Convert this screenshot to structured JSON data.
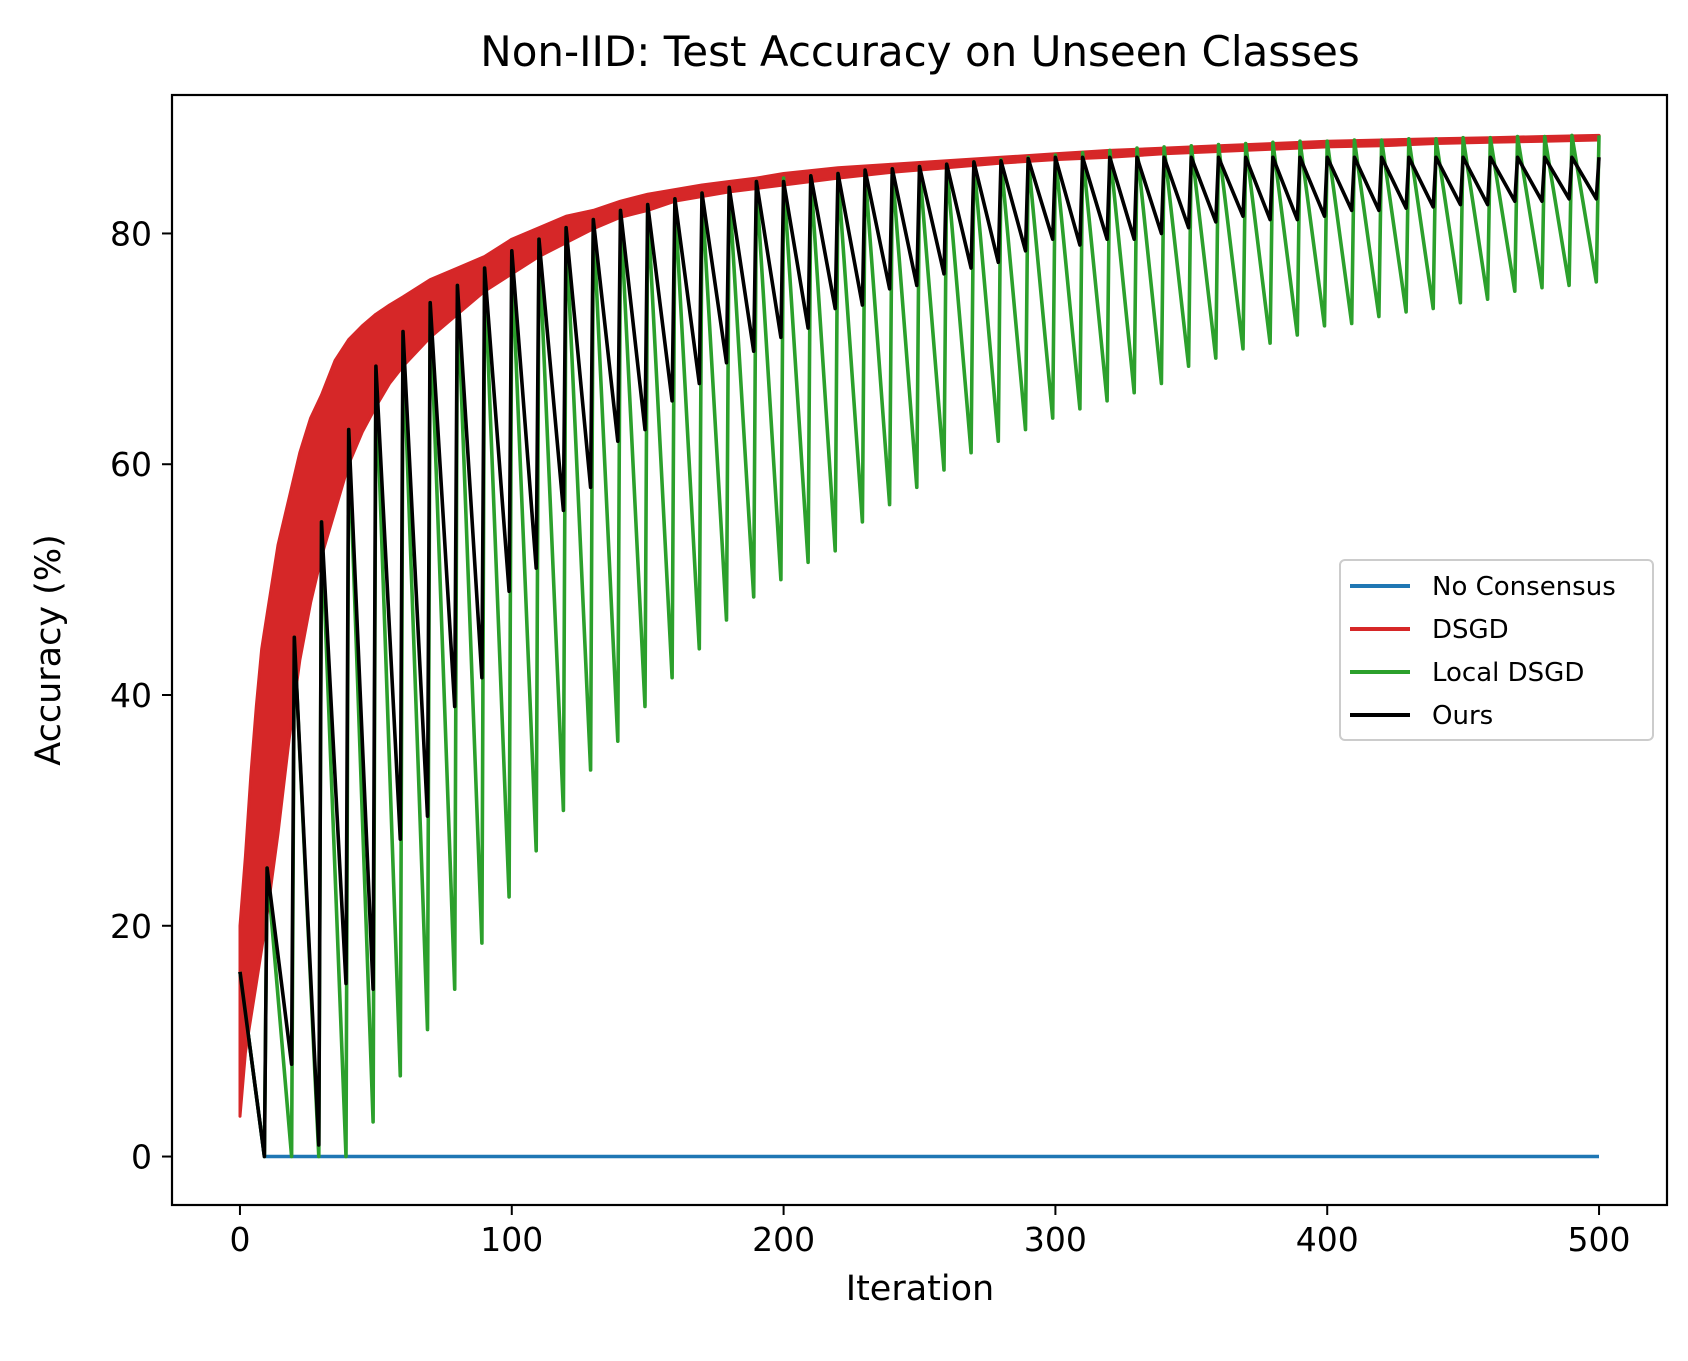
{
  "chart_data": {
    "type": "line",
    "title": "Non-IID: Test Accuracy on Unseen Classes",
    "xlabel": "Iteration",
    "ylabel": "Accuracy (%)",
    "xlim": [
      -25,
      525
    ],
    "ylim": [
      -4.2,
      92
    ],
    "x_ticks": [
      0,
      100,
      200,
      300,
      400,
      500
    ],
    "y_ticks": [
      0,
      20,
      40,
      60,
      80
    ],
    "grid": false,
    "legend_position": "center-right",
    "series": [
      {
        "name": "No Consensus",
        "color": "#1f77b4",
        "points": [
          [
            0,
            16
          ],
          [
            9,
            0
          ],
          [
            500,
            0
          ]
        ]
      },
      {
        "name": "DSGD",
        "color": "#d62728",
        "band": true,
        "x": [
          0,
          2,
          4,
          6,
          8,
          10,
          14,
          18,
          22,
          26,
          30,
          35,
          40,
          45,
          50,
          55,
          60,
          70,
          80,
          90,
          100,
          110,
          120,
          130,
          140,
          150,
          160,
          170,
          180,
          190,
          200,
          220,
          240,
          260,
          280,
          300,
          320,
          340,
          360,
          380,
          400,
          420,
          440,
          460,
          480,
          500
        ],
        "upper": [
          20,
          26,
          33,
          39,
          44,
          47,
          53,
          57,
          61,
          64,
          66,
          69,
          70.8,
          72,
          73,
          73.8,
          74.5,
          76,
          77,
          78,
          79.5,
          80.5,
          81.5,
          82,
          82.8,
          83.4,
          83.8,
          84.2,
          84.5,
          84.8,
          85.2,
          85.7,
          86,
          86.3,
          86.6,
          86.9,
          87.2,
          87.4,
          87.6,
          87.8,
          88,
          88.1,
          88.2,
          88.3,
          88.4,
          88.5
        ],
        "lower": [
          3.5,
          9,
          12,
          15,
          18,
          21,
          28,
          36,
          43,
          48,
          52,
          56,
          60,
          62.8,
          65,
          67,
          68.5,
          71,
          73,
          75,
          76.5,
          78,
          79.2,
          80.4,
          81.4,
          82,
          82.8,
          83.2,
          83.6,
          83.9,
          84.2,
          84.8,
          85.3,
          85.7,
          86.1,
          86.4,
          86.6,
          86.9,
          87.1,
          87.3,
          87.5,
          87.6,
          87.8,
          87.9,
          88,
          88.1
        ]
      },
      {
        "name": "Local DSGD",
        "color": "#2ca02c",
        "points": [
          [
            0,
            16
          ],
          [
            9,
            0
          ],
          [
            10,
            25
          ],
          [
            19,
            0
          ],
          [
            20,
            45
          ],
          [
            29,
            0
          ],
          [
            30,
            55
          ],
          [
            39,
            0
          ],
          [
            40,
            63
          ],
          [
            49,
            3
          ],
          [
            50,
            68
          ],
          [
            59,
            7
          ],
          [
            60,
            71
          ],
          [
            69,
            11
          ],
          [
            70,
            74
          ],
          [
            79,
            14.5
          ],
          [
            80,
            75.5
          ],
          [
            89,
            18.5
          ],
          [
            90,
            77
          ],
          [
            99,
            22.5
          ],
          [
            100,
            78
          ],
          [
            109,
            26.5
          ],
          [
            110,
            79.5
          ],
          [
            119,
            30
          ],
          [
            120,
            80.5
          ],
          [
            129,
            33.5
          ],
          [
            130,
            81.2
          ],
          [
            139,
            36
          ],
          [
            140,
            82
          ],
          [
            149,
            39
          ],
          [
            150,
            82.5
          ],
          [
            159,
            41.5
          ],
          [
            160,
            83
          ],
          [
            169,
            44
          ],
          [
            170,
            83.5
          ],
          [
            179,
            46.5
          ],
          [
            180,
            84
          ],
          [
            189,
            48.5
          ],
          [
            190,
            84.5
          ],
          [
            199,
            50
          ],
          [
            200,
            84.8
          ],
          [
            209,
            51.5
          ],
          [
            210,
            85
          ],
          [
            219,
            52.5
          ],
          [
            220,
            85.2
          ],
          [
            229,
            55
          ],
          [
            230,
            85.4
          ],
          [
            239,
            56.5
          ],
          [
            240,
            85.6
          ],
          [
            249,
            58
          ],
          [
            250,
            85.8
          ],
          [
            259,
            59.5
          ],
          [
            260,
            86
          ],
          [
            269,
            61
          ],
          [
            270,
            86.2
          ],
          [
            279,
            62
          ],
          [
            280,
            86.4
          ],
          [
            289,
            63
          ],
          [
            290,
            86.6
          ],
          [
            299,
            64
          ],
          [
            300,
            86.8
          ],
          [
            309,
            64.8
          ],
          [
            310,
            87
          ],
          [
            319,
            65.5
          ],
          [
            320,
            87.2
          ],
          [
            329,
            66.2
          ],
          [
            330,
            87.4
          ],
          [
            339,
            67
          ],
          [
            340,
            87.5
          ],
          [
            349,
            68.5
          ],
          [
            350,
            87.6
          ],
          [
            359,
            69.2
          ],
          [
            360,
            87.7
          ],
          [
            369,
            70
          ],
          [
            370,
            87.8
          ],
          [
            379,
            70.5
          ],
          [
            380,
            87.9
          ],
          [
            389,
            71.2
          ],
          [
            390,
            88
          ],
          [
            399,
            72
          ],
          [
            400,
            88
          ],
          [
            409,
            72.2
          ],
          [
            410,
            88.1
          ],
          [
            419,
            72.8
          ],
          [
            420,
            88.1
          ],
          [
            429,
            73.2
          ],
          [
            430,
            88.2
          ],
          [
            439,
            73.5
          ],
          [
            440,
            88.2
          ],
          [
            449,
            74
          ],
          [
            450,
            88.3
          ],
          [
            459,
            74.3
          ],
          [
            460,
            88.3
          ],
          [
            469,
            75
          ],
          [
            470,
            88.4
          ],
          [
            479,
            75.3
          ],
          [
            480,
            88.4
          ],
          [
            489,
            75.5
          ],
          [
            490,
            88.5
          ],
          [
            499,
            75.8
          ],
          [
            500,
            88.5
          ]
        ]
      },
      {
        "name": "Ours",
        "color": "#000000",
        "points": [
          [
            0,
            16
          ],
          [
            9,
            0
          ],
          [
            10,
            25
          ],
          [
            19,
            8
          ],
          [
            20,
            45
          ],
          [
            29,
            1
          ],
          [
            30,
            55
          ],
          [
            39,
            15
          ],
          [
            40,
            63
          ],
          [
            49,
            14.5
          ],
          [
            50,
            68.5
          ],
          [
            59,
            27.5
          ],
          [
            60,
            71.5
          ],
          [
            69,
            29.5
          ],
          [
            70,
            74
          ],
          [
            79,
            39
          ],
          [
            80,
            75.5
          ],
          [
            89,
            41.5
          ],
          [
            90,
            77
          ],
          [
            99,
            49
          ],
          [
            100,
            78.5
          ],
          [
            109,
            51
          ],
          [
            110,
            79.5
          ],
          [
            119,
            56
          ],
          [
            120,
            80.5
          ],
          [
            129,
            58
          ],
          [
            130,
            81.2
          ],
          [
            139,
            62
          ],
          [
            140,
            82
          ],
          [
            149,
            63
          ],
          [
            150,
            82.5
          ],
          [
            159,
            65.5
          ],
          [
            160,
            83
          ],
          [
            169,
            67
          ],
          [
            170,
            83.5
          ],
          [
            179,
            68.8
          ],
          [
            180,
            84
          ],
          [
            189,
            69.8
          ],
          [
            190,
            84.5
          ],
          [
            199,
            71
          ],
          [
            200,
            84.5
          ],
          [
            209,
            71.8
          ],
          [
            210,
            85
          ],
          [
            219,
            73.5
          ],
          [
            220,
            85.2
          ],
          [
            229,
            73.8
          ],
          [
            230,
            85.5
          ],
          [
            239,
            75.2
          ],
          [
            240,
            85.6
          ],
          [
            249,
            75.5
          ],
          [
            250,
            85.8
          ],
          [
            259,
            76.5
          ],
          [
            260,
            86
          ],
          [
            269,
            77
          ],
          [
            270,
            86.2
          ],
          [
            279,
            77.5
          ],
          [
            280,
            86.3
          ],
          [
            289,
            78.5
          ],
          [
            290,
            86.5
          ],
          [
            299,
            79.5
          ],
          [
            300,
            86.6
          ],
          [
            309,
            79
          ],
          [
            310,
            86.6
          ],
          [
            319,
            79.5
          ],
          [
            320,
            86.6
          ],
          [
            329,
            79.5
          ],
          [
            330,
            86.6
          ],
          [
            339,
            80
          ],
          [
            340,
            86.6
          ],
          [
            349,
            80.5
          ],
          [
            350,
            86.6
          ],
          [
            359,
            81
          ],
          [
            360,
            86.6
          ],
          [
            369,
            81.5
          ],
          [
            370,
            86.6
          ],
          [
            379,
            81.2
          ],
          [
            380,
            86.6
          ],
          [
            389,
            81.2
          ],
          [
            390,
            86.6
          ],
          [
            399,
            81.5
          ],
          [
            400,
            86.6
          ],
          [
            409,
            82
          ],
          [
            410,
            86.6
          ],
          [
            419,
            82
          ],
          [
            420,
            86.6
          ],
          [
            429,
            82.2
          ],
          [
            430,
            86.6
          ],
          [
            439,
            82.3
          ],
          [
            440,
            86.6
          ],
          [
            449,
            82.5
          ],
          [
            450,
            86.6
          ],
          [
            459,
            82.5
          ],
          [
            460,
            86.6
          ],
          [
            469,
            82.8
          ],
          [
            470,
            86.6
          ],
          [
            479,
            82.8
          ],
          [
            480,
            86.6
          ],
          [
            489,
            83
          ],
          [
            490,
            86.6
          ],
          [
            499,
            83
          ],
          [
            500,
            86.6
          ]
        ]
      }
    ]
  }
}
